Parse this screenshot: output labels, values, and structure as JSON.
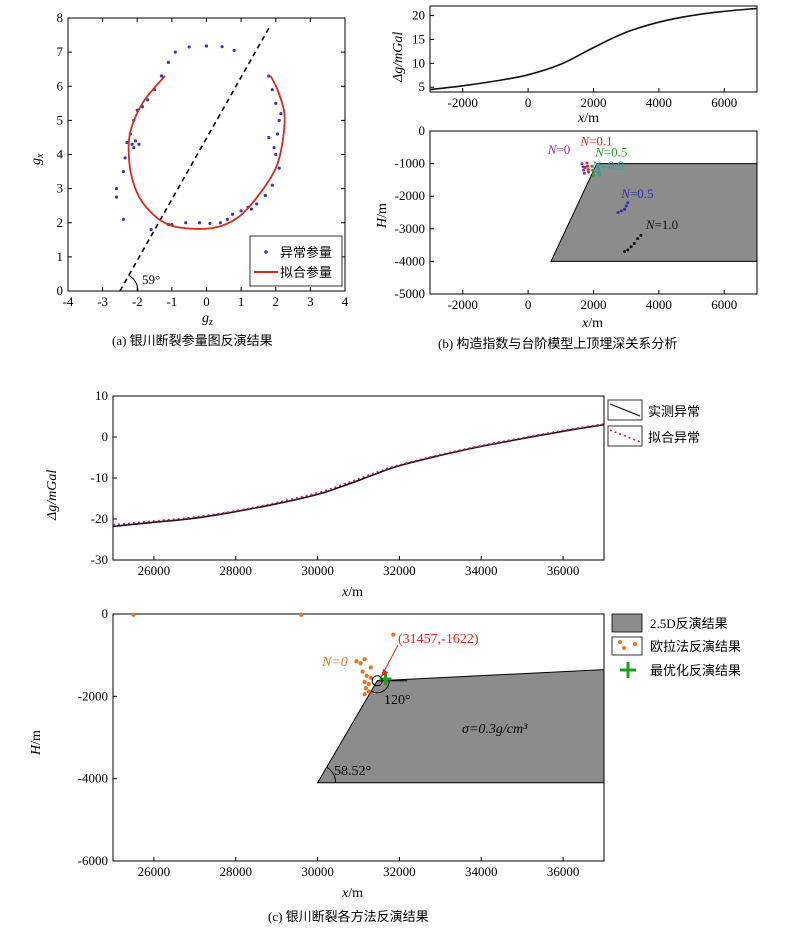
{
  "captions": {
    "a": "(a) 银川断裂参量图反演结果",
    "b": "(b) 构造指数与台阶模型上顶埋深关系分析",
    "c": "(c) 银川断裂各方法反演结果"
  },
  "colors": {
    "anomaly_dots": "#3a3aa8",
    "fit_curve": "#d82a1e",
    "block_fill": "#8c8c8c",
    "euler_dots": "#e8731f",
    "best_cross": "#1e9e1e",
    "annotation_red": "#e0281c",
    "n0_label": "#9b30a0",
    "n01_label": "#e0281c",
    "n05a_label": "#2e9e2e",
    "n09_label": "#2aa0a0",
    "n05b_label": "#2d2db0",
    "n10_label": "#111111",
    "fitted_line": "#c02070"
  },
  "chart_data": [
    {
      "id": "a",
      "type": "scatter",
      "xlabel_main": "g",
      "xlabel_sub": "z",
      "ylabel_main": "g",
      "ylabel_sub": "x",
      "xlim": [
        -4,
        4
      ],
      "ylim": [
        0,
        8
      ],
      "xticks": [
        -4,
        -3,
        -2,
        -1,
        0,
        1,
        2,
        3,
        4
      ],
      "yticks": [
        0,
        1,
        2,
        3,
        4,
        5,
        6,
        7,
        8
      ],
      "angle_label": "59°",
      "legend": {
        "anomaly": "异常参量",
        "fit": "拟合参量"
      },
      "dashed_line": [
        [
          -2.5,
          0
        ],
        [
          1.8,
          7.7
        ]
      ],
      "anomaly_points": [
        [
          -0.5,
          7.15
        ],
        [
          0.0,
          7.18
        ],
        [
          0.45,
          7.16
        ],
        [
          0.8,
          7.05
        ],
        [
          -0.9,
          7.0
        ],
        [
          -1.1,
          6.7
        ],
        [
          -1.3,
          6.3
        ],
        [
          -1.5,
          5.9
        ],
        [
          -1.7,
          5.6
        ],
        [
          -1.85,
          5.4
        ],
        [
          -2.0,
          5.3
        ],
        [
          -2.1,
          5.0
        ],
        [
          -2.2,
          4.6
        ],
        [
          -2.3,
          4.35
        ],
        [
          -2.05,
          4.4
        ],
        [
          -1.95,
          4.3
        ],
        [
          -2.1,
          4.2
        ],
        [
          -2.35,
          3.9
        ],
        [
          -2.4,
          3.5
        ],
        [
          -2.6,
          3.0
        ],
        [
          -2.6,
          2.75
        ],
        [
          -2.4,
          2.1
        ],
        [
          -1.6,
          1.8
        ],
        [
          -1.1,
          1.95
        ],
        [
          -0.6,
          2.0
        ],
        [
          -0.2,
          2.0
        ],
        [
          0.1,
          1.98
        ],
        [
          0.4,
          2.0
        ],
        [
          0.6,
          2.1
        ],
        [
          0.75,
          2.25
        ],
        [
          1.0,
          2.35
        ],
        [
          1.2,
          2.45
        ],
        [
          1.45,
          2.55
        ],
        [
          1.7,
          2.8
        ],
        [
          1.9,
          3.1
        ],
        [
          2.1,
          3.6
        ],
        [
          2.0,
          4.0
        ],
        [
          1.95,
          4.2
        ],
        [
          1.8,
          4.5
        ],
        [
          2.1,
          5.0
        ],
        [
          2.15,
          5.2
        ],
        [
          2.0,
          5.5
        ],
        [
          1.9,
          5.9
        ],
        [
          1.8,
          6.3
        ],
        [
          -2.15,
          4.3
        ],
        [
          -1.0,
          1.95
        ],
        [
          1.3,
          2.4
        ],
        [
          2.05,
          4.6
        ]
      ],
      "fit_curve": [
        [
          -1.2,
          6.3
        ],
        [
          -1.55,
          5.9
        ],
        [
          -1.85,
          5.5
        ],
        [
          -2.15,
          4.85
        ],
        [
          -2.25,
          4.2
        ],
        [
          -2.15,
          3.3
        ],
        [
          -1.85,
          2.6
        ],
        [
          -1.3,
          2.05
        ],
        [
          -0.7,
          1.85
        ],
        [
          0.2,
          1.85
        ],
        [
          0.9,
          2.15
        ],
        [
          1.5,
          2.8
        ],
        [
          2.0,
          3.6
        ],
        [
          2.2,
          4.4
        ],
        [
          2.25,
          5.2
        ],
        [
          2.05,
          5.9
        ],
        [
          1.85,
          6.3
        ]
      ]
    },
    {
      "id": "b-top",
      "type": "line",
      "xlabel_main": "x",
      "xlabel_unit": "/m",
      "ylabel": "Δg/mGal",
      "xlim": [
        -3000,
        7000
      ],
      "ylim": [
        4,
        22
      ],
      "xticks": [
        -2000,
        0,
        2000,
        4000,
        6000
      ],
      "yticks": [
        5,
        10,
        15,
        20
      ],
      "x": [
        -3000,
        -2000,
        -1000,
        0,
        1000,
        2000,
        3000,
        4000,
        5000,
        6000,
        7000
      ],
      "y": [
        4.5,
        5.3,
        6.3,
        7.6,
        9.8,
        13.3,
        16.5,
        18.6,
        20.0,
        20.9,
        21.5
      ]
    },
    {
      "id": "b-bottom",
      "type": "scatter",
      "xlabel_main": "x",
      "xlabel_unit": "/m",
      "ylabel_main": "H",
      "ylabel_unit": "/m",
      "xlim": [
        -3000,
        7000
      ],
      "ylim": [
        -5000,
        0
      ],
      "xticks": [
        -2000,
        0,
        2000,
        4000,
        6000
      ],
      "yticks": [
        0,
        -1000,
        -2000,
        -3000,
        -4000,
        -5000
      ],
      "block": [
        [
          2100,
          -1000
        ],
        [
          7000,
          -1000
        ],
        [
          7000,
          -4000
        ],
        [
          700,
          -4000
        ]
      ],
      "clusters": [
        {
          "key": "n0",
          "label_prefix": "N",
          "label_val": "=0",
          "label_at": [
            600,
            -700
          ],
          "points": [
            [
              1650,
              -1000
            ],
            [
              1680,
              -1100
            ],
            [
              1700,
              -1200
            ],
            [
              1720,
              -1300
            ],
            [
              1750,
              -1120
            ]
          ]
        },
        {
          "key": "n01",
          "label_prefix": "N",
          "label_val": "=0.1",
          "label_at": [
            1600,
            -450
          ],
          "points": [
            [
              1800,
              -980
            ],
            [
              1820,
              -1080
            ],
            [
              1840,
              -1180
            ],
            [
              1850,
              -1260
            ]
          ]
        },
        {
          "key": "n05a",
          "label_prefix": "N",
          "label_val": "=0.5",
          "label_at": [
            2050,
            -780
          ],
          "points": [
            [
              1950,
              -1080
            ],
            [
              1970,
              -1200
            ],
            [
              1990,
              -1320
            ],
            [
              2000,
              -1380
            ]
          ]
        },
        {
          "key": "n09",
          "label_prefix": "N",
          "label_val": "=0.9",
          "label_at": [
            1950,
            -1200
          ],
          "points": [
            [
              2150,
              -1150
            ],
            [
              2170,
              -1250
            ],
            [
              2190,
              -1350
            ]
          ]
        },
        {
          "key": "n05b",
          "label_prefix": "N",
          "label_val": "=0.5",
          "label_at": [
            2850,
            -2050
          ],
          "points": [
            [
              2750,
              -2500
            ],
            [
              2850,
              -2450
            ],
            [
              2950,
              -2400
            ],
            [
              3000,
              -2300
            ],
            [
              3050,
              -2200
            ]
          ]
        },
        {
          "key": "n10",
          "label_prefix": "N",
          "label_val": "=1.0",
          "label_at": [
            3600,
            -3000
          ],
          "points": [
            [
              2950,
              -3700
            ],
            [
              3050,
              -3650
            ],
            [
              3150,
              -3550
            ],
            [
              3250,
              -3450
            ],
            [
              3350,
              -3300
            ],
            [
              3450,
              -3200
            ]
          ]
        }
      ]
    },
    {
      "id": "c-top",
      "type": "line",
      "xlabel_main": "x",
      "xlabel_unit": "/m",
      "ylabel": "Δg/mGal",
      "xlim": [
        25000,
        37000
      ],
      "ylim": [
        -30,
        10
      ],
      "xticks": [
        26000,
        28000,
        30000,
        32000,
        34000,
        36000
      ],
      "yticks": [
        10,
        0,
        -10,
        -20,
        -30
      ],
      "legend": {
        "observed": "实测异常",
        "fitted": "拟合异常"
      },
      "series": [
        {
          "key": "observed",
          "x": [
            25000,
            26000,
            27000,
            28000,
            29000,
            30000,
            30500,
            31000,
            31500,
            32000,
            33000,
            34000,
            35000,
            36000,
            37000
          ],
          "y": [
            -21.8,
            -20.8,
            -19.8,
            -18.2,
            -16.3,
            -14.0,
            -12.4,
            -10.6,
            -8.7,
            -7.0,
            -4.5,
            -2.3,
            -0.4,
            1.4,
            3.0
          ]
        },
        {
          "key": "fitted",
          "x": [
            25000,
            26000,
            27000,
            28000,
            29000,
            30000,
            30500,
            31000,
            31500,
            32000,
            33000,
            34000,
            35000,
            36000,
            37000
          ],
          "y": [
            -21.4,
            -20.5,
            -19.5,
            -18.0,
            -16.0,
            -13.6,
            -12.0,
            -10.2,
            -8.4,
            -6.8,
            -4.3,
            -2.1,
            -0.2,
            1.6,
            3.2
          ]
        }
      ]
    },
    {
      "id": "c-bottom",
      "type": "scatter",
      "xlabel_main": "x",
      "xlabel_unit": "/m",
      "ylabel_main": "H",
      "ylabel_unit": "/m",
      "xlim": [
        25000,
        37000
      ],
      "ylim": [
        -6000,
        0
      ],
      "xticks": [
        26000,
        28000,
        30000,
        32000,
        34000,
        36000
      ],
      "yticks": [
        0,
        -2000,
        -4000,
        -6000
      ],
      "legend": {
        "block": "2.5D反演结果",
        "euler": "欧拉法反演结果",
        "best": "最优化反演结果"
      },
      "block": [
        [
          31457,
          -1622
        ],
        [
          37000,
          -1350
        ],
        [
          37000,
          -4100
        ],
        [
          30000,
          -4100
        ]
      ],
      "euler_points": [
        [
          25500,
          -20
        ],
        [
          29600,
          -20
        ],
        [
          31850,
          -500
        ],
        [
          30950,
          -1150
        ],
        [
          31050,
          -1200
        ],
        [
          31150,
          -1100
        ],
        [
          31300,
          -1300
        ],
        [
          31100,
          -1400
        ],
        [
          31200,
          -1500
        ],
        [
          31300,
          -1550
        ],
        [
          31150,
          -1650
        ],
        [
          31250,
          -1700
        ],
        [
          31180,
          -1800
        ],
        [
          31250,
          -1880
        ],
        [
          31150,
          -1950
        ]
      ],
      "best_point": [
        31660,
        -1580
      ],
      "annotation": "(31457,-1622)",
      "n0_label": "N=0",
      "angle_top": "120°",
      "angle_bottom": "58.52°",
      "sigma_label": "σ=0.3g/cm³"
    }
  ]
}
